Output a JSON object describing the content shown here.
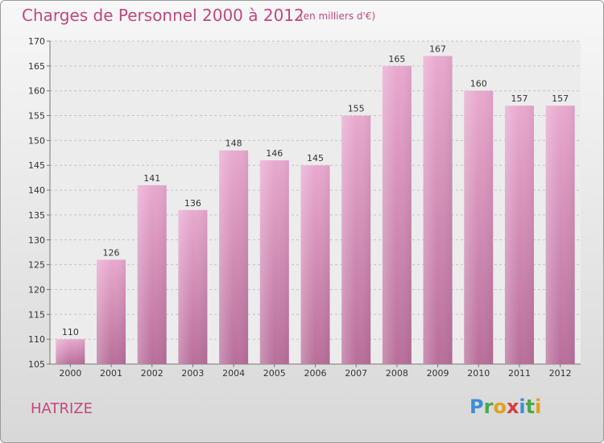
{
  "title": "Charges de Personnel 2000 à 2012",
  "subtitle": "(en milliers d'€)",
  "commune": "HATRIZE",
  "logo": {
    "letters": [
      "P",
      "r",
      "o",
      "x",
      "i",
      "t",
      "i"
    ],
    "colors": [
      "#3c8fd6",
      "#4aa84a",
      "#e0a020",
      "#d63c3c",
      "#3c8fd6",
      "#4aa84a",
      "#e0a020"
    ]
  },
  "colors": {
    "bar": "#d98ab6",
    "accent": "#c2477d"
  },
  "chart_data": {
    "type": "bar",
    "title": "Charges de Personnel 2000 à 2012",
    "subtitle": "(en milliers d'€)",
    "categories": [
      "2000",
      "2001",
      "2002",
      "2003",
      "2004",
      "2005",
      "2006",
      "2007",
      "2008",
      "2009",
      "2010",
      "2011",
      "2012"
    ],
    "values": [
      110,
      126,
      141,
      136,
      148,
      146,
      145,
      155,
      165,
      167,
      160,
      157,
      157
    ],
    "ylim": [
      105,
      170
    ],
    "yticks": [
      105,
      110,
      115,
      120,
      125,
      130,
      135,
      140,
      145,
      150,
      155,
      160,
      165,
      170
    ],
    "grid": true,
    "xlabel": "",
    "ylabel": ""
  }
}
